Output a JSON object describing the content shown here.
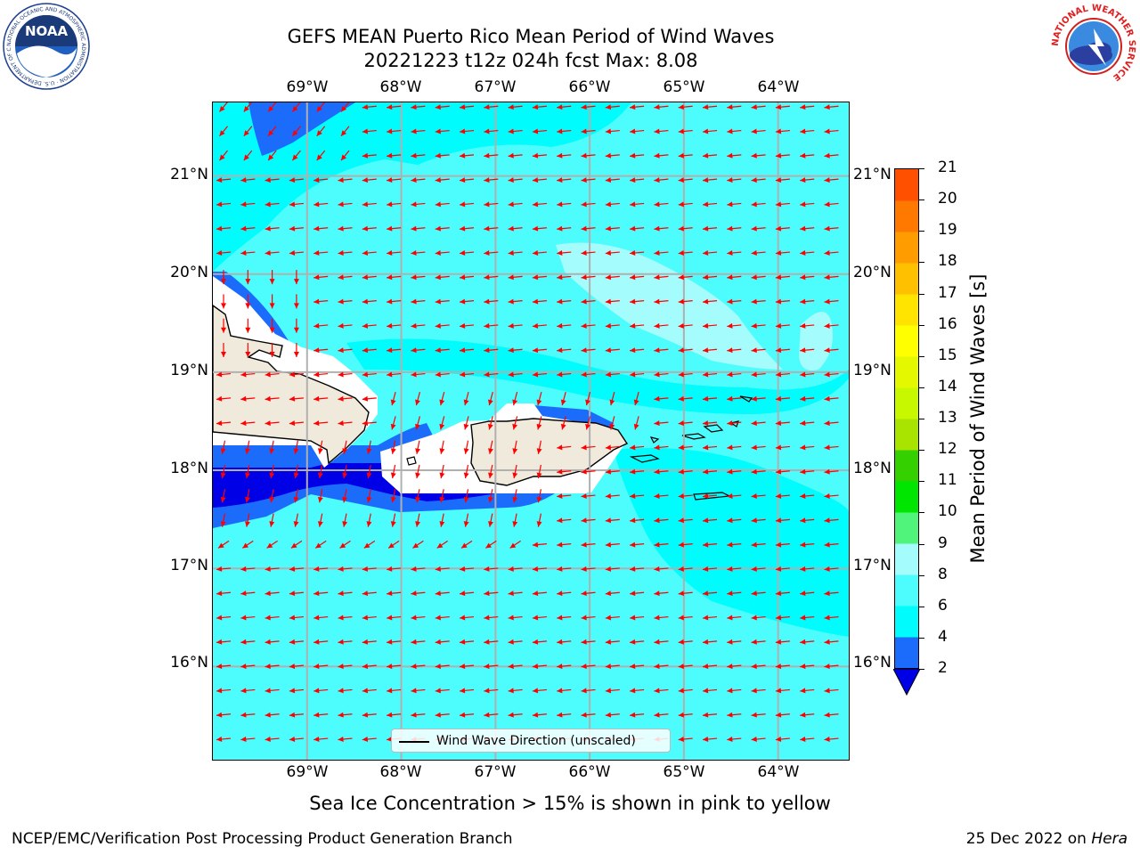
{
  "title": {
    "line1": "GEFS MEAN Puerto Rico Mean Period of Wind Waves",
    "line2": "20221223 t12z 024h fcst   Max: 8.08"
  },
  "map": {
    "lon_labels": [
      "69°W",
      "68°W",
      "67°W",
      "66°W",
      "65°W",
      "64°W"
    ],
    "lat_labels": [
      "21°N",
      "20°N",
      "19°N",
      "18°N",
      "17°N",
      "16°N"
    ],
    "lon_range": [
      -70,
      -63.25
    ],
    "lat_range": [
      15.05,
      21.75
    ],
    "colors": {
      "ocean_main": "#4dfcfc",
      "ocean_light": "#00fcfc",
      "ocean_pale": "#a4fcfc",
      "deep_blue": "#0000e6",
      "mid_blue": "#1c6cfc",
      "land": "#efeadc",
      "arrow": "#ff0000",
      "grid": "#b0b0b0"
    },
    "legend_label": "Wind Wave Direction (unscaled)"
  },
  "colorbar": {
    "label": "Mean Period of Wind Waves [s]",
    "ticks": [
      "2",
      "4",
      "6",
      "8",
      "9",
      "10",
      "11",
      "12",
      "13",
      "14",
      "15",
      "16",
      "17",
      "18",
      "19",
      "20",
      "21"
    ],
    "colors": [
      "#1c6cfc",
      "#00fcfc",
      "#4dfcfc",
      "#a4fcfc",
      "#50f47a",
      "#00e600",
      "#34d000",
      "#a8e400",
      "#c8f800",
      "#e4f800",
      "#ffff00",
      "#ffe400",
      "#ffc000",
      "#ff9c00",
      "#ff7800",
      "#ff5000",
      "#ff1c00",
      "#ff0000"
    ],
    "extend_color": "#0000e6"
  },
  "subtitle": "Sea Ice Concentration > 15% is shown in pink to yellow",
  "footer": {
    "left": "NCEP/EMC/Verification Post Processing Product Generation Branch",
    "right_date": "25 Dec 2022 on ",
    "right_host": "Hera"
  },
  "logos": {
    "noaa_text": "NOAA",
    "noaa_ring": "NATIONAL OCEANIC AND ATMOSPHERIC ADMINISTRATION · U.S. DEPARTMENT OF COMMERCE",
    "nws_ring": "NATIONAL WEATHER SERVICE"
  }
}
